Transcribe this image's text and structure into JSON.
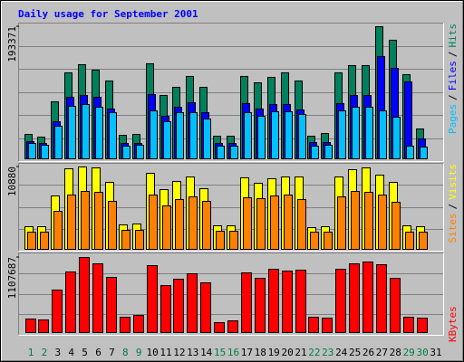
{
  "chart_data": [
    {
      "type": "bar",
      "title": "Daily usage for September 2001",
      "title_color": "#0000ff",
      "legend_separator": "/",
      "ylim": [
        0,
        193371
      ],
      "yticks": [
        193371
      ],
      "series": [
        {
          "name": "Hits",
          "color": "#00805c",
          "values": [
            35770,
            31800,
            83480,
            125880,
            137800,
            129850,
            113950,
            34450,
            35770,
            139130,
            92750,
            104680,
            120580,
            104680,
            33130,
            33130,
            120580,
            111300,
            119250,
            125880,
            113950,
            33130,
            37100,
            125880,
            136480,
            136480,
            193371,
            173580,
            123230,
            43730,
            null
          ]
        },
        {
          "name": "Files",
          "color": "#0000ff",
          "values": [
            25180,
            22530,
            54330,
            90100,
            92750,
            90100,
            72880,
            22530,
            22530,
            94080,
            62280,
            75530,
            82150,
            67580,
            22530,
            22530,
            80830,
            72880,
            79500,
            79500,
            71550,
            23850,
            23850,
            80830,
            92750,
            92750,
            149730,
            132500,
            112630,
            29150,
            null
          ]
        },
        {
          "name": "Pages",
          "color": "#00c0ff",
          "values": [
            22530,
            19880,
            47700,
            76850,
            79500,
            75530,
            67580,
            18550,
            19880,
            70230,
            54330,
            67580,
            67580,
            58300,
            18550,
            18550,
            67580,
            62280,
            68900,
            68900,
            64930,
            18550,
            19880,
            70230,
            75530,
            75530,
            70230,
            60950,
            18550,
            17230,
            null
          ]
        }
      ]
    },
    {
      "type": "bar",
      "legend_separator": "/",
      "ylim": [
        0,
        10880
      ],
      "yticks": [
        10880
      ],
      "series": [
        {
          "name": "Visits",
          "color": "#ffff00",
          "values": [
            2990,
            2990,
            7050,
            10640,
            10880,
            10760,
            8850,
            3230,
            3350,
            10040,
            7890,
            8970,
            9560,
            8010,
            3110,
            3110,
            9450,
            8730,
            9330,
            9560,
            9560,
            2870,
            2990,
            9560,
            10520,
            10760,
            9800,
            8850,
            3110,
            2990,
            null
          ]
        },
        {
          "name": "Sites",
          "color": "#ff8000",
          "values": [
            2270,
            2270,
            5020,
            7170,
            7650,
            7530,
            6340,
            2510,
            2510,
            7170,
            5740,
            6580,
            6930,
            6340,
            2390,
            2390,
            6810,
            6700,
            7050,
            7170,
            6580,
            2270,
            2270,
            6930,
            7650,
            7530,
            7170,
            6220,
            2270,
            2270,
            null
          ]
        }
      ]
    },
    {
      "type": "bar",
      "ylim": [
        0,
        1107687
      ],
      "yticks": [
        1107687
      ],
      "series": [
        {
          "name": "KBytes",
          "color": "#ff0000",
          "values": [
            200190,
            186840,
            627260,
            894180,
            1107687,
            1014300,
            814110,
            226880,
            253570,
            987600,
            693990,
            787410,
            867490,
            734030,
            146810,
            173500,
            880840,
            800760,
            934220,
            907530,
            920880,
            226880,
            213540,
            934220,
            1014300,
            1040990,
            1000950,
            800760,
            226880,
            213540,
            null
          ]
        }
      ],
      "categories": [
        "1",
        "2",
        "3",
        "4",
        "5",
        "6",
        "7",
        "8",
        "9",
        "10",
        "11",
        "12",
        "13",
        "14",
        "15",
        "16",
        "17",
        "18",
        "19",
        "20",
        "21",
        "22",
        "23",
        "24",
        "25",
        "26",
        "27",
        "28",
        "29",
        "30",
        "31"
      ],
      "category_colors": [
        "#008040",
        "#008040",
        "#000000",
        "#000000",
        "#000000",
        "#000000",
        "#000000",
        "#008040",
        "#008040",
        "#000000",
        "#000000",
        "#000000",
        "#000000",
        "#000000",
        "#008040",
        "#008040",
        "#000000",
        "#000000",
        "#000000",
        "#000000",
        "#000000",
        "#008040",
        "#008040",
        "#000000",
        "#000000",
        "#000000",
        "#000000",
        "#000000",
        "#008040",
        "#008040",
        "#000000"
      ]
    }
  ]
}
